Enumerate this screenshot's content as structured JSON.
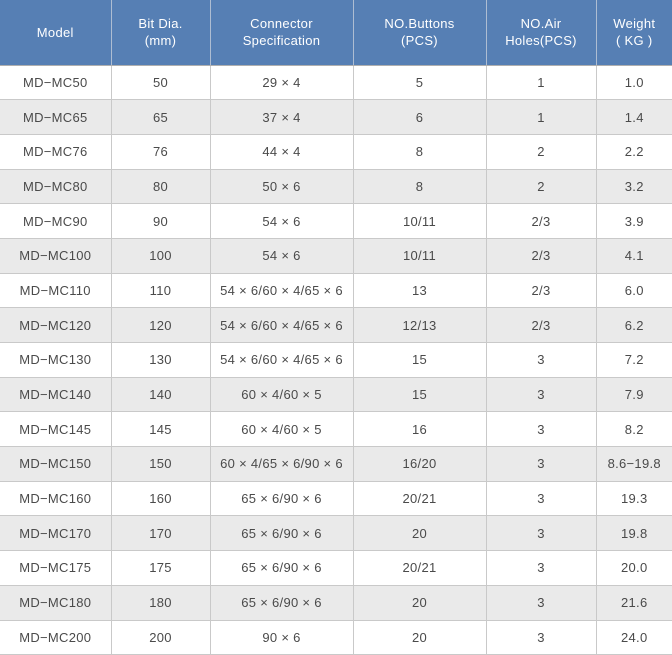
{
  "colors": {
    "header_bg": "#567FB4",
    "header_text": "#FFFFFF",
    "header_divider": "#AEBDD2",
    "header_bottom_border": "#AFAFAF",
    "row_alt_bg": "#EAEAEA",
    "row_bg": "#FFFFFF",
    "border": "#C9C9C9",
    "body_text": "#4A4A4A"
  },
  "table": {
    "columns": [
      {
        "key": "model",
        "label": "Model"
      },
      {
        "key": "bit-dia",
        "label": "Bit Dia.\n(mm)"
      },
      {
        "key": "connector-spec",
        "label": "Connector\nSpecification"
      },
      {
        "key": "no-buttons",
        "label": "NO.Buttons\n(PCS)"
      },
      {
        "key": "no-air-holes",
        "label": "NO.Air\nHoles(PCS)"
      },
      {
        "key": "weight",
        "label": "Weight\n( KG )"
      }
    ],
    "rows": [
      [
        "MD−MC50",
        "50",
        "29 × 4",
        "5",
        "1",
        "1.0"
      ],
      [
        "MD−MC65",
        "65",
        "37 × 4",
        "6",
        "1",
        "1.4"
      ],
      [
        "MD−MC76",
        "76",
        "44 × 4",
        "8",
        "2",
        "2.2"
      ],
      [
        "MD−MC80",
        "80",
        "50 × 6",
        "8",
        "2",
        "3.2"
      ],
      [
        "MD−MC90",
        "90",
        "54 × 6",
        "10/11",
        "2/3",
        "3.9"
      ],
      [
        "MD−MC100",
        "100",
        "54 × 6",
        "10/11",
        "2/3",
        "4.1"
      ],
      [
        "MD−MC110",
        "110",
        "54 × 6/60 × 4/65 × 6",
        "13",
        "2/3",
        "6.0"
      ],
      [
        "MD−MC120",
        "120",
        "54 × 6/60 × 4/65 × 6",
        "12/13",
        "2/3",
        "6.2"
      ],
      [
        "MD−MC130",
        "130",
        "54 × 6/60 × 4/65 × 6",
        "15",
        "3",
        "7.2"
      ],
      [
        "MD−MC140",
        "140",
        "60 × 4/60 × 5",
        "15",
        "3",
        "7.9"
      ],
      [
        "MD−MC145",
        "145",
        "60 × 4/60 × 5",
        "16",
        "3",
        "8.2"
      ],
      [
        "MD−MC150",
        "150",
        "60 × 4/65 × 6/90 × 6",
        "16/20",
        "3",
        "8.6−19.8"
      ],
      [
        "MD−MC160",
        "160",
        "65 × 6/90 × 6",
        "20/21",
        "3",
        "19.3"
      ],
      [
        "MD−MC170",
        "170",
        "65 × 6/90 × 6",
        "20",
        "3",
        "19.8"
      ],
      [
        "MD−MC175",
        "175",
        "65 × 6/90 × 6",
        "20/21",
        "3",
        "20.0"
      ],
      [
        "MD−MC180",
        "180",
        "65 × 6/90 × 6",
        "20",
        "3",
        "21.6"
      ],
      [
        "MD−MC200",
        "200",
        "90 × 6",
        "20",
        "3",
        "24.0"
      ]
    ]
  }
}
